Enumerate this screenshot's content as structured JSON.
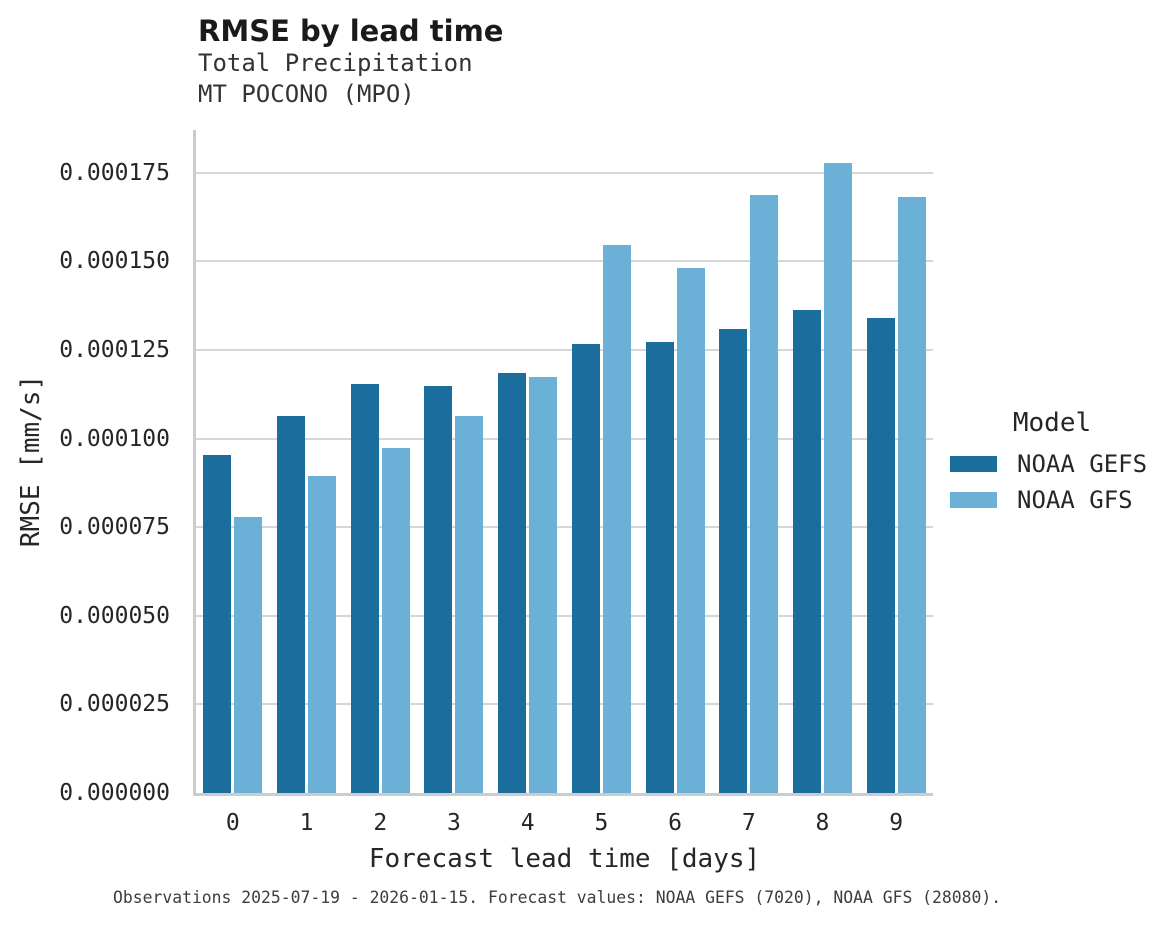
{
  "chart_data": {
    "type": "bar",
    "title": "RMSE by lead time",
    "subtitle1": "Total Precipitation",
    "subtitle2": "MT POCONO (MPO)",
    "xlabel": "Forecast lead time [days]",
    "ylabel": "RMSE [mm/s]",
    "categories": [
      "0",
      "1",
      "2",
      "3",
      "4",
      "5",
      "6",
      "7",
      "8",
      "9"
    ],
    "series": [
      {
        "name": "NOAA GEFS",
        "color": "#1B6D9D",
        "values": [
          9.55e-05,
          0.0001065,
          0.0001155,
          0.000115,
          0.0001185,
          0.0001267,
          0.0001272,
          0.000131,
          0.0001362,
          0.000134
        ]
      },
      {
        "name": "NOAA GFS",
        "color": "#6BB0D7",
        "values": [
          7.8e-05,
          8.95e-05,
          9.75e-05,
          0.0001065,
          0.0001175,
          0.0001547,
          0.0001482,
          0.0001688,
          0.0001778,
          0.0001682
        ]
      }
    ],
    "ylim": [
      0,
      0.0001871
    ],
    "yticks": [
      {
        "value": 0,
        "label": "0.000000"
      },
      {
        "value": 2.5e-05,
        "label": "0.000025"
      },
      {
        "value": 5e-05,
        "label": "0.000050"
      },
      {
        "value": 7.5e-05,
        "label": "0.000075"
      },
      {
        "value": 0.0001,
        "label": "0.000100"
      },
      {
        "value": 0.000125,
        "label": "0.000125"
      },
      {
        "value": 0.00015,
        "label": "0.000150"
      },
      {
        "value": 0.000175,
        "label": "0.000175"
      }
    ],
    "grid": "horizontal",
    "legend": {
      "title": "Model",
      "position": "right"
    },
    "caption": "Observations 2025-07-19 - 2026-01-15. Forecast values: NOAA GEFS (7020), NOAA GFS (28080)."
  }
}
